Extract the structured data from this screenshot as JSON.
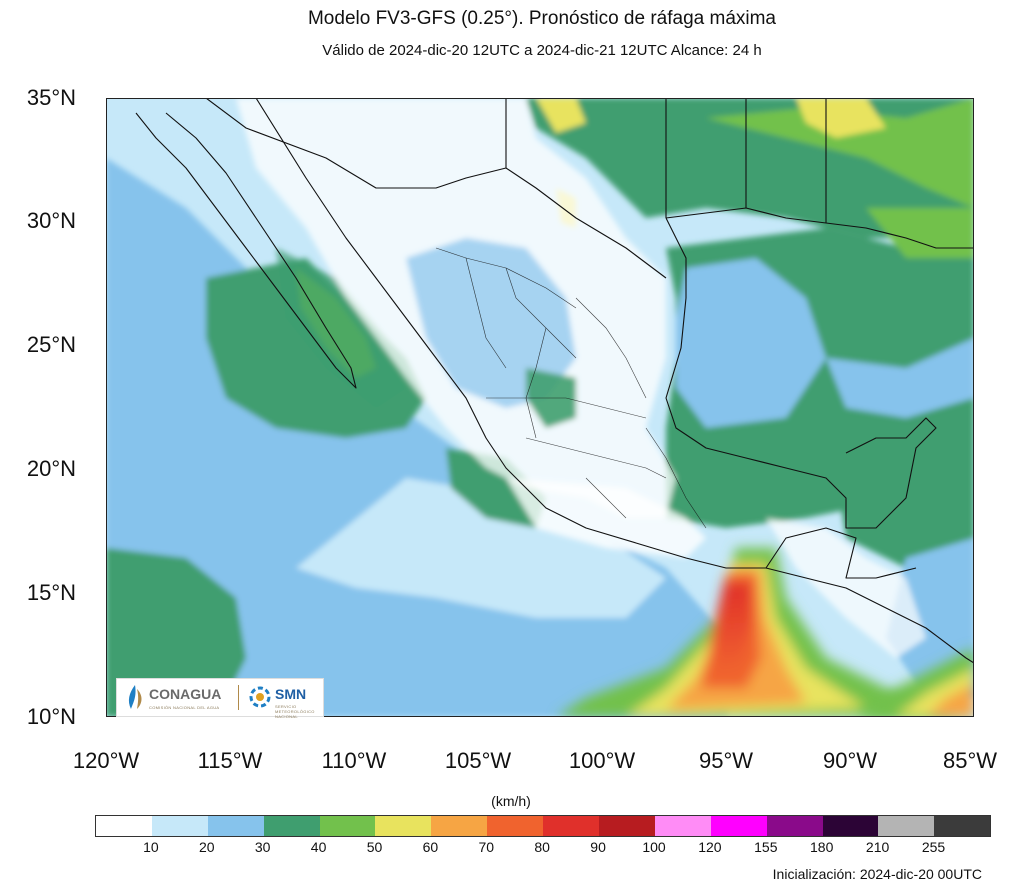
{
  "header": {
    "title": "Modelo FV3-GFS (0.25°). Pronóstico de ráfaga máxima",
    "subtitle": "Válido de 2024-dic-20 12UTC a 2024-dic-21 12UTC    Alcance: 24 h"
  },
  "map": {
    "lat_labels": [
      "35°N",
      "30°N",
      "25°N",
      "20°N",
      "15°N",
      "10°N"
    ],
    "lon_labels": [
      "120°W",
      "115°W",
      "110°W",
      "105°W",
      "100°W",
      "95°W",
      "90°W",
      "85°W"
    ],
    "extent": {
      "lon": [
        -120,
        -85
      ],
      "lat": [
        10,
        35
      ]
    }
  },
  "colorbar": {
    "unit": "(km/h)",
    "ticks": [
      "10",
      "20",
      "30",
      "40",
      "50",
      "60",
      "70",
      "80",
      "90",
      "100",
      "120",
      "155",
      "180",
      "210",
      "255"
    ],
    "colors": [
      "#ffffff",
      "#c6e8f9",
      "#86c3ec",
      "#3f9e6f",
      "#72c14c",
      "#e8e35e",
      "#f6a544",
      "#f0632e",
      "#e0302b",
      "#b71c20",
      "#ff8cf6",
      "#ff00ff",
      "#8a0a8a",
      "#2c0436",
      "#b4b4b4",
      "#3b3b3b"
    ]
  },
  "footer": {
    "init": "Inicialización: 2024-dic-20 00UTC"
  },
  "logos": {
    "conagua": "CONAGUA",
    "conagua_sub": "COMISIÓN NACIONAL DEL AGUA",
    "smn": "SMN",
    "smn_sub": "SERVICIO METEOROLÓGICO NACIONAL"
  }
}
